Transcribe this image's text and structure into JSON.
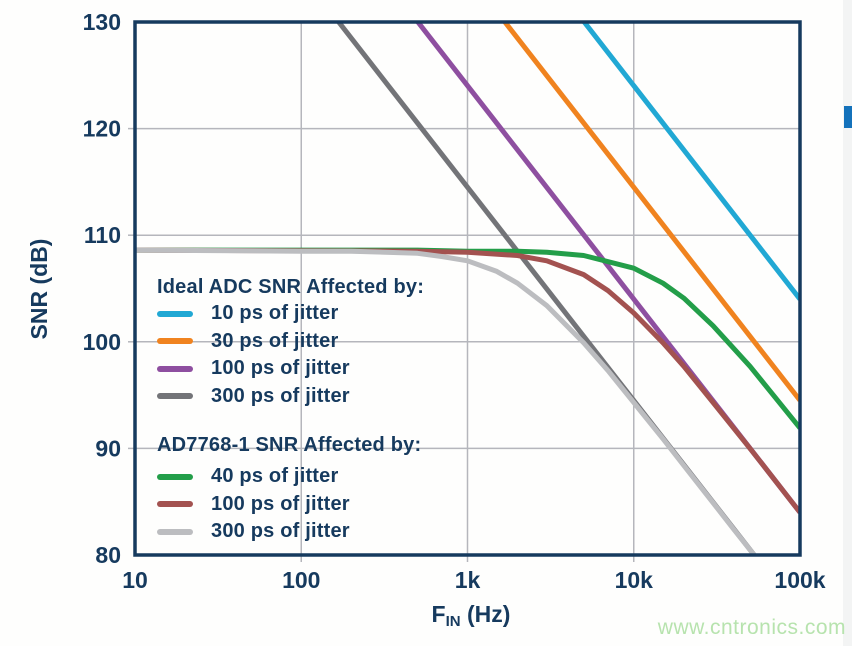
{
  "page": {
    "background": "#fefefd",
    "watermark": "www.cntronics.com",
    "edge_strip_color": "#f3f4f4",
    "edge_marker_color": "#1472bb"
  },
  "chart_data": {
    "type": "line",
    "title": "",
    "xlabel": {
      "main": "F",
      "sub": "IN",
      "unit": " (Hz)"
    },
    "ylabel": "SNR (dB)",
    "x_scale": "log",
    "xlim": [
      10,
      100000
    ],
    "ylim": [
      80,
      130
    ],
    "grid": true,
    "legend_position": "inside-left",
    "colors": {
      "axis": "#163a5e",
      "text": "#163a5e",
      "gridline": "#b5b6bc"
    },
    "x_ticks": [
      {
        "value": 10,
        "label": "10",
        "grid": false
      },
      {
        "value": 100,
        "label": "100",
        "grid": true
      },
      {
        "value": 1000,
        "label": "1k",
        "grid": true
      },
      {
        "value": 10000,
        "label": "10k",
        "grid": true
      },
      {
        "value": 100000,
        "label": "100k",
        "grid": false
      }
    ],
    "y_ticks": [
      {
        "value": 80,
        "label": "80",
        "grid": false
      },
      {
        "value": 90,
        "label": "90",
        "grid": true
      },
      {
        "value": 100,
        "label": "100",
        "grid": true
      },
      {
        "value": 110,
        "label": "110",
        "grid": true
      },
      {
        "value": 120,
        "label": "120",
        "grid": true
      },
      {
        "value": 130,
        "label": "130",
        "grid": false
      }
    ],
    "legend": {
      "groups": [
        {
          "title": "Ideal ADC SNR Affected by:",
          "items": [
            {
              "label": "10 ps of jitter",
              "series": "ideal_10ps"
            },
            {
              "label": "30 ps of jitter",
              "series": "ideal_30ps"
            },
            {
              "label": "100 ps of jitter",
              "series": "ideal_100ps"
            },
            {
              "label": "300 ps of jitter",
              "series": "ideal_300ps"
            }
          ]
        },
        {
          "title": "AD7768-1 SNR Affected by:",
          "items": [
            {
              "label": "40 ps of jitter",
              "series": "ad7768_40ps"
            },
            {
              "label": "100 ps of jitter",
              "series": "ad7768_100ps"
            },
            {
              "label": "300 ps of jitter",
              "series": "ad7768_300ps"
            }
          ]
        }
      ]
    },
    "series": [
      {
        "id": "ideal_300ps",
        "name": "Ideal ADC, 300 ps of jitter",
        "color": "#737478",
        "points": [
          [
            168,
            130
          ],
          [
            53052,
            80
          ]
        ]
      },
      {
        "id": "ideal_100ps",
        "name": "Ideal ADC, 100 ps of jitter",
        "color": "#8e4fa0",
        "points": [
          [
            503,
            130
          ],
          [
            100000,
            84.0
          ]
        ]
      },
      {
        "id": "ideal_30ps",
        "name": "Ideal ADC, 30 ps of jitter",
        "color": "#f0831f",
        "points": [
          [
            1678,
            130
          ],
          [
            100000,
            94.5
          ]
        ]
      },
      {
        "id": "ideal_10ps",
        "name": "Ideal ADC, 10 ps of jitter",
        "color": "#21a8d4",
        "points": [
          [
            5033,
            130
          ],
          [
            100000,
            104.0
          ]
        ]
      },
      {
        "id": "ad7768_40ps",
        "name": "AD7768-1, 40 ps of jitter",
        "color": "#239e49",
        "points": [
          [
            10,
            108.6
          ],
          [
            500,
            108.6
          ],
          [
            1000,
            108.5
          ],
          [
            2000,
            108.5
          ],
          [
            3000,
            108.4
          ],
          [
            5000,
            108.1
          ],
          [
            10000,
            106.9
          ],
          [
            15000,
            105.5
          ],
          [
            20000,
            104.1
          ],
          [
            30000,
            101.5
          ],
          [
            50000,
            97.7
          ],
          [
            70000,
            94.9
          ],
          [
            100000,
            91.9
          ]
        ]
      },
      {
        "id": "ad7768_100ps",
        "name": "AD7768-1, 100 ps of jitter",
        "color": "#a35250",
        "points": [
          [
            10,
            108.6
          ],
          [
            500,
            108.5
          ],
          [
            1000,
            108.4
          ],
          [
            2000,
            108.1
          ],
          [
            3000,
            107.6
          ],
          [
            5000,
            106.3
          ],
          [
            7000,
            104.8
          ],
          [
            10000,
            102.7
          ],
          [
            15000,
            99.9
          ],
          [
            20000,
            97.7
          ],
          [
            30000,
            94.3
          ],
          [
            50000,
            90.0
          ],
          [
            70000,
            87.1
          ],
          [
            100000,
            84.0
          ]
        ]
      },
      {
        "id": "ad7768_300ps",
        "name": "AD7768-1, 300 ps of jitter",
        "color": "#bcbdc0",
        "points": [
          [
            10,
            108.6
          ],
          [
            100,
            108.5
          ],
          [
            200,
            108.5
          ],
          [
            500,
            108.3
          ],
          [
            700,
            108.0
          ],
          [
            1000,
            107.6
          ],
          [
            1500,
            106.6
          ],
          [
            2000,
            105.5
          ],
          [
            3000,
            103.4
          ],
          [
            5000,
            99.9
          ],
          [
            7000,
            97.3
          ],
          [
            10000,
            94.3
          ],
          [
            15000,
            90.9
          ],
          [
            20000,
            88.4
          ],
          [
            30000,
            84.9
          ],
          [
            40000,
            82.4
          ],
          [
            53000,
            80.0
          ]
        ]
      }
    ]
  }
}
